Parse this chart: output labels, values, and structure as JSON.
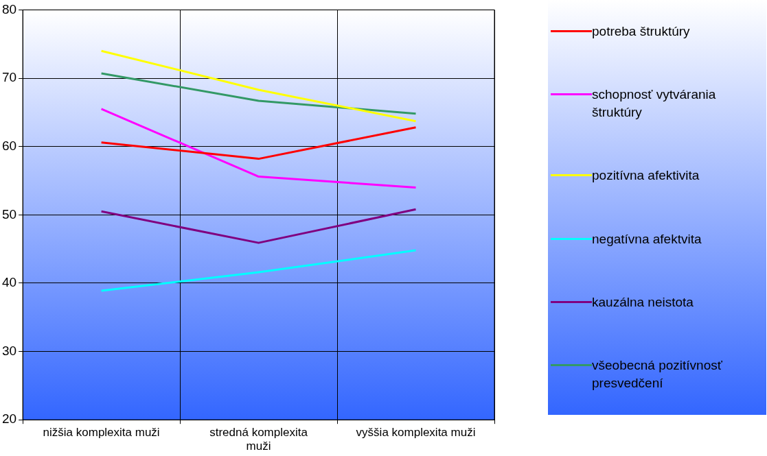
{
  "chart_data": {
    "type": "line",
    "categories": [
      "nižšia komplexita muži",
      "stredná komplexita muži",
      "vyššia komplexita muži"
    ],
    "series": [
      {
        "name": "potreba štruktúry",
        "color": "#ff0000",
        "values": [
          60.6,
          58.2,
          62.8
        ]
      },
      {
        "name": "schopnosť vytvárania štruktúry",
        "color": "#ff00ff",
        "values": [
          65.5,
          55.6,
          54.0
        ]
      },
      {
        "name": "pozitívna afektivita",
        "color": "#ffff00",
        "values": [
          74.0,
          68.3,
          63.7
        ]
      },
      {
        "name": "negatívna afektvita",
        "color": "#00ffff",
        "values": [
          38.9,
          41.6,
          44.8
        ]
      },
      {
        "name": "kauzálna neistota",
        "color": "#800080",
        "values": [
          50.5,
          45.9,
          50.8
        ]
      },
      {
        "name": "všeobecná pozitívnosť presvedčení",
        "color": "#339966",
        "values": [
          70.7,
          66.7,
          64.8
        ]
      }
    ],
    "ylim": [
      20,
      80
    ],
    "yticks": [
      20,
      30,
      40,
      50,
      60,
      70,
      80
    ],
    "grid": true,
    "legend": "right",
    "marker": "none",
    "line_style": "solid"
  }
}
